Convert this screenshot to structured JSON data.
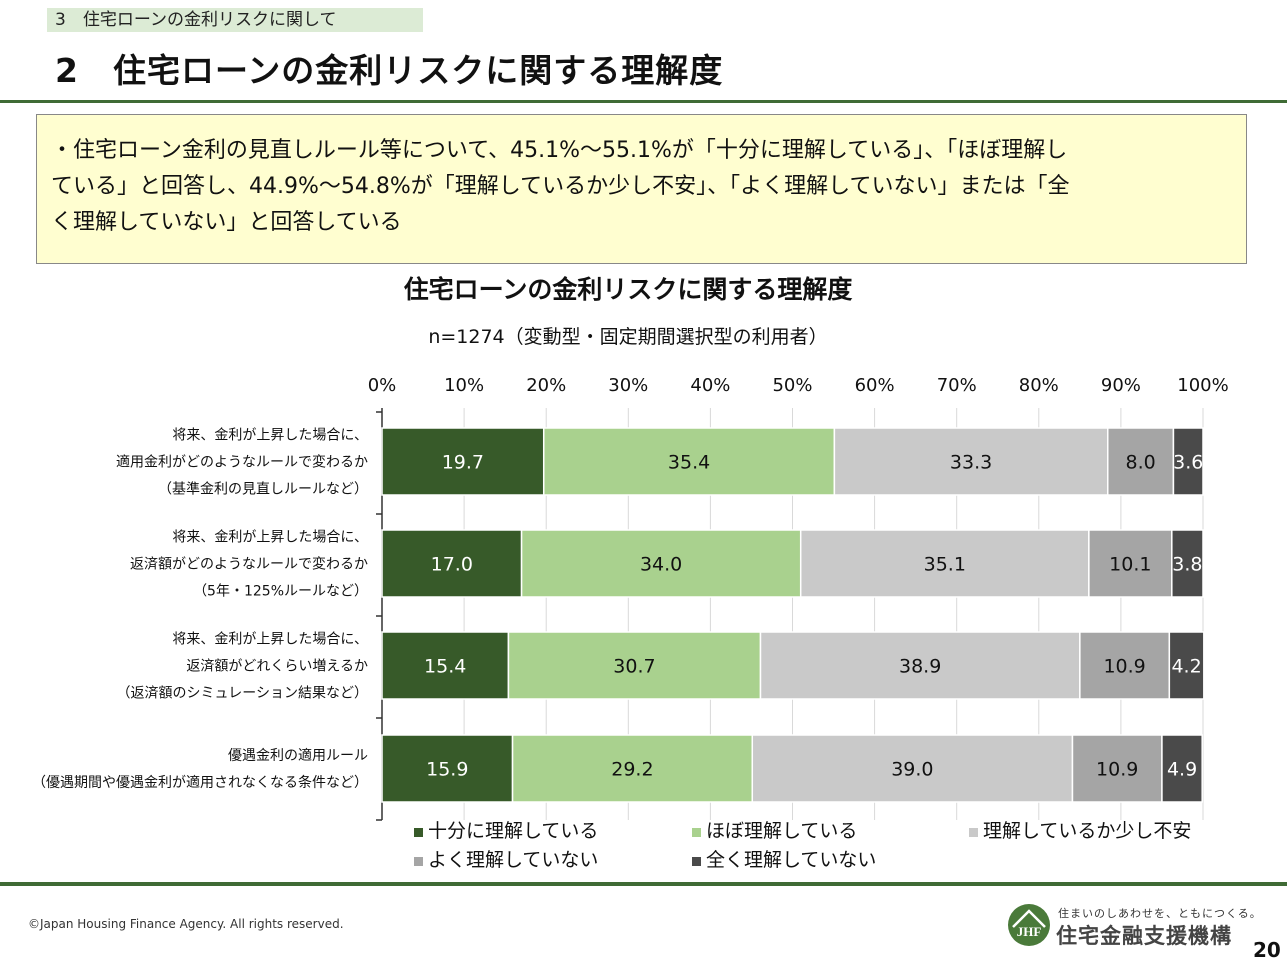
{
  "header": {
    "section_tag": "3　住宅ローンの金利リスクに関して",
    "title": "2　住宅ローンの金利リスクに関する理解度"
  },
  "summary": {
    "lines": [
      "・住宅ローン金利の見直しルール等について、45.1%～55.1%が「十分に理解している」、「ほぼ理解し",
      "ている」と回答し、44.9%～54.8%が「理解しているか少し不安」、「よく理解していない」または「全",
      "く理解していない」と回答している"
    ]
  },
  "chart_data": {
    "type": "bar",
    "orientation": "horizontal",
    "stacked": true,
    "title": "住宅ローンの金利リスクに関する理解度",
    "subtitle": "n=1274（変動型・固定期間選択型の利用者）",
    "x_ticks": [
      "0%",
      "10%",
      "20%",
      "30%",
      "40%",
      "50%",
      "60%",
      "70%",
      "80%",
      "90%",
      "100%"
    ],
    "xlim": [
      0,
      100
    ],
    "grid": true,
    "legend_position": "bottom",
    "categories": [
      [
        "将来、金利が上昇した場合に、",
        "適用金利がどのようなルールで変わるか",
        "（基準金利の見直しルールなど）"
      ],
      [
        "将来、金利が上昇した場合に、",
        "返済額がどのようなルールで変わるか",
        "（5年・125%ルールなど）"
      ],
      [
        "将来、金利が上昇した場合に、",
        "返済額がどれくらい増えるか",
        "（返済額のシミュレーション結果など）"
      ],
      [
        "優遇金利の適用ルール",
        "（優遇期間や優遇金利が適用されなくなる条件など）"
      ]
    ],
    "series": [
      {
        "name": "十分に理解している",
        "color": "#375a29",
        "values": [
          19.7,
          17.0,
          15.4,
          15.9
        ]
      },
      {
        "name": "ほぼ理解している",
        "color": "#a9d18e",
        "values": [
          35.4,
          34.0,
          30.7,
          29.2
        ]
      },
      {
        "name": "理解しているか少し不安",
        "color": "#c9c9c9",
        "values": [
          33.3,
          35.1,
          38.9,
          39.0
        ]
      },
      {
        "name": "よく理解していない",
        "color": "#a5a5a5",
        "values": [
          8.0,
          10.1,
          10.9,
          10.9
        ]
      },
      {
        "name": "全く理解していない",
        "color": "#4a4a4a",
        "values": [
          3.6,
          3.8,
          4.2,
          4.9
        ]
      }
    ]
  },
  "footer": {
    "copyright": "©Japan Housing Finance Agency. All rights reserved.",
    "logo_tagline": "住まいのしあわせを、ともにつくる。",
    "logo_name": "住宅金融支援機構",
    "logo_mark": "JHF",
    "page_number": "20"
  }
}
